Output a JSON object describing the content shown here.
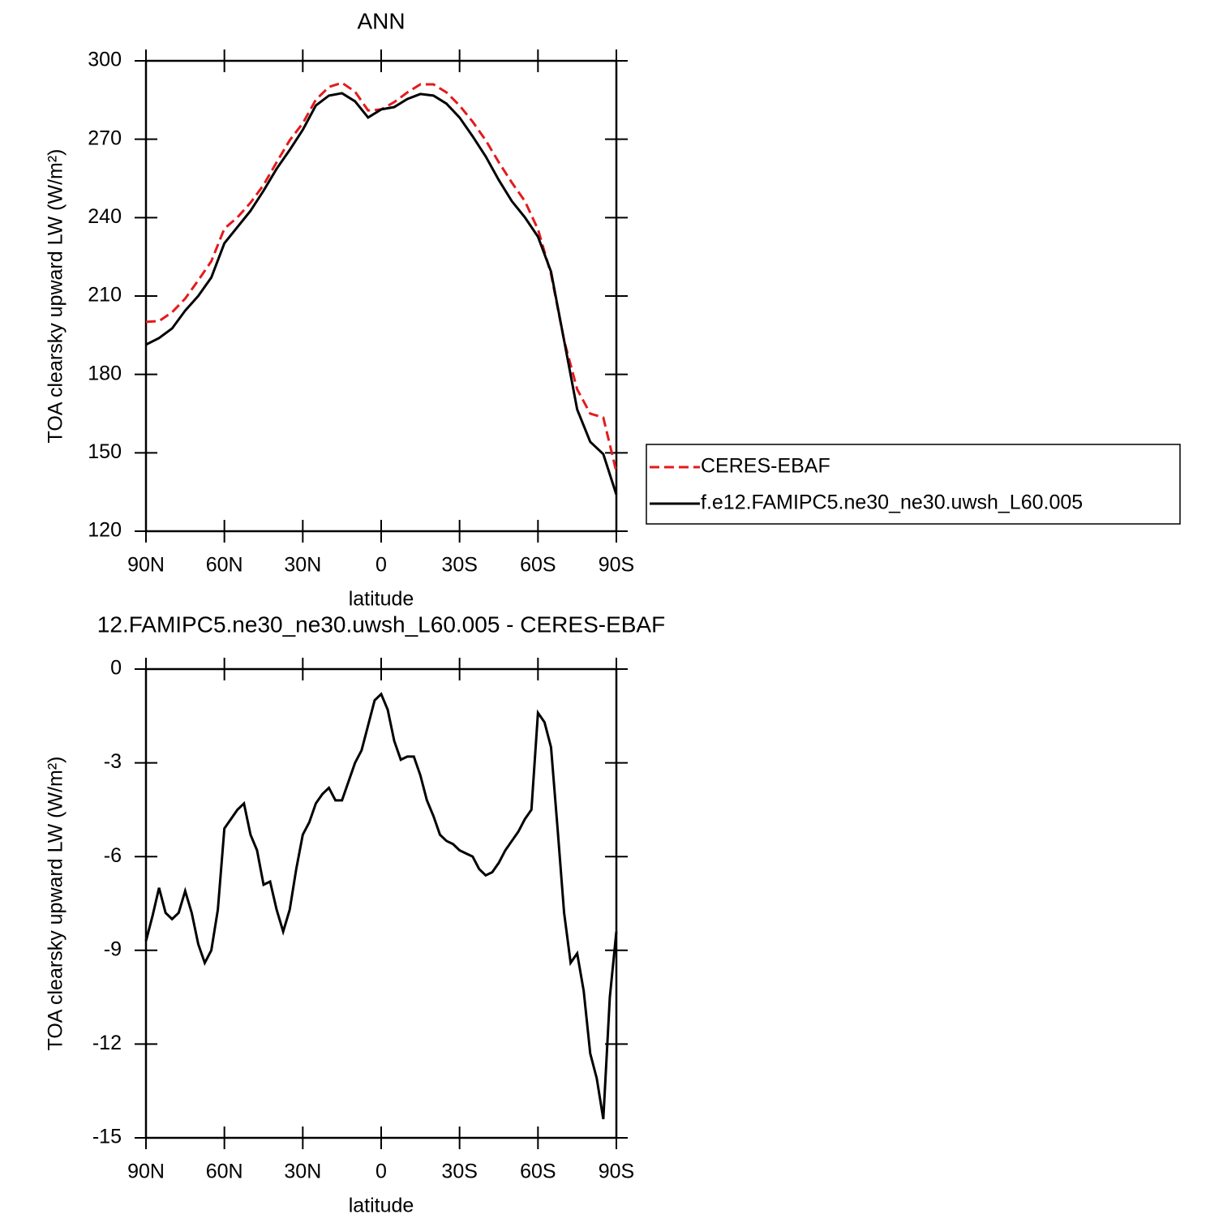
{
  "chart_data": [
    {
      "type": "line",
      "title": "ANN",
      "x_label": "latitude",
      "y_label": "TOA clearsky upward LW (W/m²)",
      "x": [
        90,
        85,
        80,
        75,
        70,
        65,
        60,
        55,
        50,
        45,
        40,
        35,
        30,
        25,
        20,
        15,
        10,
        5,
        0,
        -5,
        -10,
        -15,
        -20,
        -25,
        -30,
        -35,
        -40,
        -45,
        -50,
        -55,
        -60,
        -65,
        -70,
        -75,
        -80,
        -85,
        -90
      ],
      "series": [
        {
          "name": "CERES-EBAF",
          "color": "#e41a1c",
          "line_style": "dashed",
          "values": [
            200.1,
            200.4,
            203.8,
            209,
            216,
            223.3,
            235.8,
            240.1,
            245.7,
            252.5,
            261.2,
            269.6,
            276.1,
            285.1,
            290,
            291.6,
            288.2,
            281,
            281.4,
            284.2,
            287.9,
            291,
            291,
            287.9,
            282.9,
            276.7,
            269.6,
            261.2,
            253.4,
            246.3,
            235.5,
            218.4,
            193,
            174.3,
            165,
            163.5,
            142.7
          ]
        },
        {
          "name": "f.e12.FAMIPC5.ne30_ne30.uwsh_L60.005",
          "color": "#000000",
          "line_style": "solid",
          "values": [
            191.4,
            193.9,
            197.6,
            204.4,
            210,
            217.1,
            230.2,
            236.4,
            242.6,
            250.3,
            258.7,
            265.9,
            273.6,
            282.9,
            286.7,
            287.6,
            284.5,
            278.3,
            281.4,
            282.3,
            285.4,
            287.3,
            286.7,
            283.6,
            278.3,
            271.1,
            263.4,
            254.4,
            246.3,
            240.1,
            232.7,
            219.3,
            193,
            166.6,
            154.2,
            149.5,
            134
          ]
        }
      ],
      "xlim": [
        90,
        -90
      ],
      "xticks": [
        {
          "value": 90,
          "label": "90N"
        },
        {
          "value": 60,
          "label": "60N"
        },
        {
          "value": 30,
          "label": "30N"
        },
        0,
        {
          "value": -30,
          "label": "30S"
        },
        {
          "value": -60,
          "label": "60S"
        },
        {
          "value": -90,
          "label": "90S"
        }
      ],
      "ylim": [
        120,
        300
      ],
      "yticks": [
        120,
        150,
        180,
        210,
        240,
        270,
        300
      ],
      "legend": "right"
    },
    {
      "type": "line",
      "title": "12.FAMIPC5.ne30_ne30.uwsh_L60.005 - CERES-EBAF",
      "x_label": "latitude",
      "y_label": "TOA clearsky upward LW (W/m²)",
      "x": [
        90,
        87.5,
        85,
        82.5,
        80,
        77.5,
        75,
        72.5,
        70,
        67.5,
        65,
        62.5,
        60,
        57.5,
        55,
        52.5,
        50,
        47.5,
        45,
        42.5,
        40,
        37.5,
        35,
        32.5,
        30,
        27.5,
        25,
        22.5,
        20,
        17.5,
        15,
        12.5,
        10,
        7.5,
        5,
        2.5,
        0,
        -2.5,
        -5,
        -7.5,
        -10,
        -12.5,
        -15,
        -17.5,
        -20,
        -22.5,
        -25,
        -27.5,
        -30,
        -32.5,
        -35,
        -37.5,
        -40,
        -42.5,
        -45,
        -47.5,
        -50,
        -52.5,
        -55,
        -57.5,
        -60,
        -62.5,
        -65,
        -67.5,
        -70,
        -72.5,
        -75,
        -77.5,
        -80,
        -82.5,
        -85,
        -87.5,
        -90
      ],
      "series": [
        {
          "color": "#000000",
          "line_style": "solid",
          "values": [
            -8.7,
            -7.9,
            -7,
            -7.8,
            -8,
            -7.8,
            -7.1,
            -7.8,
            -8.8,
            -9.4,
            -9,
            -7.7,
            -5.1,
            -4.8,
            -4.5,
            -4.3,
            -5.3,
            -5.8,
            -6.9,
            -6.8,
            -7.7,
            -8.4,
            -7.7,
            -6.4,
            -5.3,
            -4.9,
            -4.3,
            -4,
            -3.8,
            -4.2,
            -4.2,
            -3.6,
            -3,
            -2.6,
            -1.8,
            -1,
            -0.8,
            -1.3,
            -2.3,
            -2.9,
            -2.8,
            -2.8,
            -3.4,
            -4.2,
            -4.7,
            -5.3,
            -5.5,
            -5.6,
            -5.8,
            -5.9,
            -6,
            -6.4,
            -6.6,
            -6.5,
            -6.2,
            -5.8,
            -5.5,
            -5.2,
            -4.8,
            -4.5,
            -1.4,
            -1.7,
            -2.5,
            -5.1,
            -7.8,
            -9.4,
            -9.1,
            -10.3,
            -12.3,
            -13.1,
            -14.4,
            -10.5,
            -8.4
          ]
        }
      ],
      "xlim": [
        90,
        -90
      ],
      "xticks": [
        {
          "value": 90,
          "label": "90N"
        },
        {
          "value": 60,
          "label": "60N"
        },
        {
          "value": 30,
          "label": "30N"
        },
        0,
        {
          "value": -30,
          "label": "30S"
        },
        {
          "value": -60,
          "label": "60S"
        },
        {
          "value": -90,
          "label": "90S"
        }
      ],
      "ylim": [
        -15,
        0
      ],
      "yticks": [
        -15,
        -12,
        -9,
        -6,
        -3,
        0
      ]
    }
  ]
}
